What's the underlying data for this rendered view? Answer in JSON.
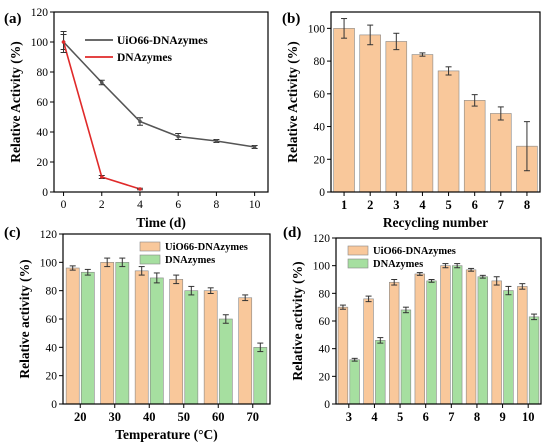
{
  "chart_data": [
    {
      "panel": "(a)",
      "type": "line",
      "xlabel": "Time (d)",
      "ylabel": "Relative Activity (%)",
      "xlim": [
        -0.5,
        10.7
      ],
      "ylim": [
        0,
        120
      ],
      "xticks": [
        0,
        2,
        4,
        6,
        8,
        10
      ],
      "yticks": [
        0,
        20,
        40,
        60,
        80,
        100,
        120
      ],
      "legend_position": "top-right",
      "series": [
        {
          "name": "UiO66-DNAzymes",
          "color": "#555555",
          "x": [
            0,
            2,
            4,
            6,
            8,
            10
          ],
          "y": [
            100,
            73,
            47,
            37,
            34,
            30
          ],
          "err": [
            5,
            1.5,
            2.5,
            2,
            1,
            1
          ]
        },
        {
          "name": "DNAzymes",
          "color": "#e02a2a",
          "x": [
            0,
            2,
            4
          ],
          "y": [
            100,
            10,
            2
          ],
          "err": [
            7,
            1,
            0.5
          ]
        }
      ]
    },
    {
      "panel": "(b)",
      "type": "bar",
      "xlabel": "Recycling number",
      "ylabel": "Relative Activity (%)",
      "ylim": [
        0,
        110
      ],
      "yticks": [
        0,
        20,
        40,
        60,
        80,
        100
      ],
      "categories": [
        "1",
        "2",
        "3",
        "4",
        "5",
        "6",
        "7",
        "8"
      ],
      "series": [
        {
          "name": "",
          "color": "#f9c89b",
          "values": [
            100,
            96,
            92,
            84,
            74,
            56,
            48,
            28
          ],
          "err": [
            6,
            6,
            5,
            1,
            2.5,
            3.5,
            4,
            15
          ]
        }
      ]
    },
    {
      "panel": "(c)",
      "type": "bar",
      "xlabel": "Temperature (°C)",
      "ylabel": "Relative activity (%)",
      "ylim": [
        0,
        120
      ],
      "yticks": [
        0,
        20,
        40,
        60,
        80,
        100,
        120
      ],
      "categories": [
        "20",
        "30",
        "40",
        "50",
        "60",
        "70"
      ],
      "legend_position": "top-right",
      "series": [
        {
          "name": "UiO66-DNAzymes",
          "color": "#f9c89b",
          "values": [
            96,
            100,
            94,
            88,
            80,
            75
          ],
          "err": [
            1.5,
            3,
            3,
            3,
            2,
            2
          ]
        },
        {
          "name": "DNAzymes",
          "color": "#a6dfa0",
          "values": [
            93,
            100,
            89,
            80,
            60,
            40
          ],
          "err": [
            2,
            3,
            3.5,
            3,
            3,
            3
          ]
        }
      ]
    },
    {
      "panel": "(d)",
      "type": "bar",
      "xlabel": "",
      "ylabel": "Relative activity (%)",
      "ylim": [
        0,
        120
      ],
      "yticks": [
        0,
        20,
        40,
        60,
        80,
        100,
        120
      ],
      "categories": [
        "3",
        "4",
        "5",
        "6",
        "7",
        "8",
        "9",
        "10"
      ],
      "legend_position": "top-left",
      "series": [
        {
          "name": "UiO66-DNAzymes",
          "color": "#f9c89b",
          "values": [
            70,
            76,
            88,
            94,
            100,
            97,
            89,
            85
          ],
          "err": [
            1.5,
            2,
            2,
            1,
            1.5,
            1,
            3,
            2
          ]
        },
        {
          "name": "DNAzymes",
          "color": "#a6dfa0",
          "values": [
            32,
            46,
            68,
            89,
            100,
            92,
            82,
            63
          ],
          "err": [
            1,
            2,
            2,
            1,
            1.5,
            1,
            3,
            2
          ]
        }
      ]
    }
  ]
}
